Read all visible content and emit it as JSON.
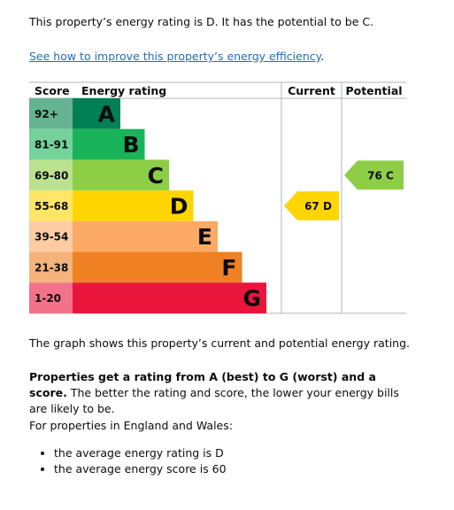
{
  "intro_text": "This property’s energy rating is D. It has the potential to be C.",
  "improve_link": "See how to improve this property’s energy efficiency",
  "improve_link_suffix": ".",
  "graph_description": "The graph shows this property’s current and potential energy rating.",
  "properties_bold": "Properties get a rating from A (best) to G (worst) and a score.",
  "properties_rest": " The better the rating and score, the lower your energy bills are likely to be.",
  "for_properties": "For properties in England and Wales:",
  "averages": [
    "the average energy rating is D",
    "the average energy score is 60"
  ],
  "chart_data": {
    "type": "bar",
    "headers": {
      "score": "Score",
      "rating": "Energy rating",
      "current": "Current",
      "potential": "Potential"
    },
    "bands": [
      {
        "range": "92+",
        "letter": "A",
        "color": "#008054",
        "range_bg": "#66b393"
      },
      {
        "range": "81-91",
        "letter": "B",
        "color": "#19b459",
        "range_bg": "#75d29b"
      },
      {
        "range": "69-80",
        "letter": "C",
        "color": "#8dce46",
        "range_bg": "#bbe290"
      },
      {
        "range": "55-68",
        "letter": "D",
        "color": "#ffd500",
        "range_bg": "#ffe666"
      },
      {
        "range": "39-54",
        "letter": "E",
        "color": "#fcaa65",
        "range_bg": "#fdcca3"
      },
      {
        "range": "21-38",
        "letter": "F",
        "color": "#ef8023",
        "range_bg": "#f5b37b"
      },
      {
        "range": "1-20",
        "letter": "G",
        "color": "#e9153b",
        "range_bg": "#f27389"
      }
    ],
    "current": {
      "score": 67,
      "band": "D",
      "label": "67 D",
      "color": "#ffd500"
    },
    "potential": {
      "score": 76,
      "band": "C",
      "label": "76 C",
      "color": "#8dce46"
    }
  }
}
